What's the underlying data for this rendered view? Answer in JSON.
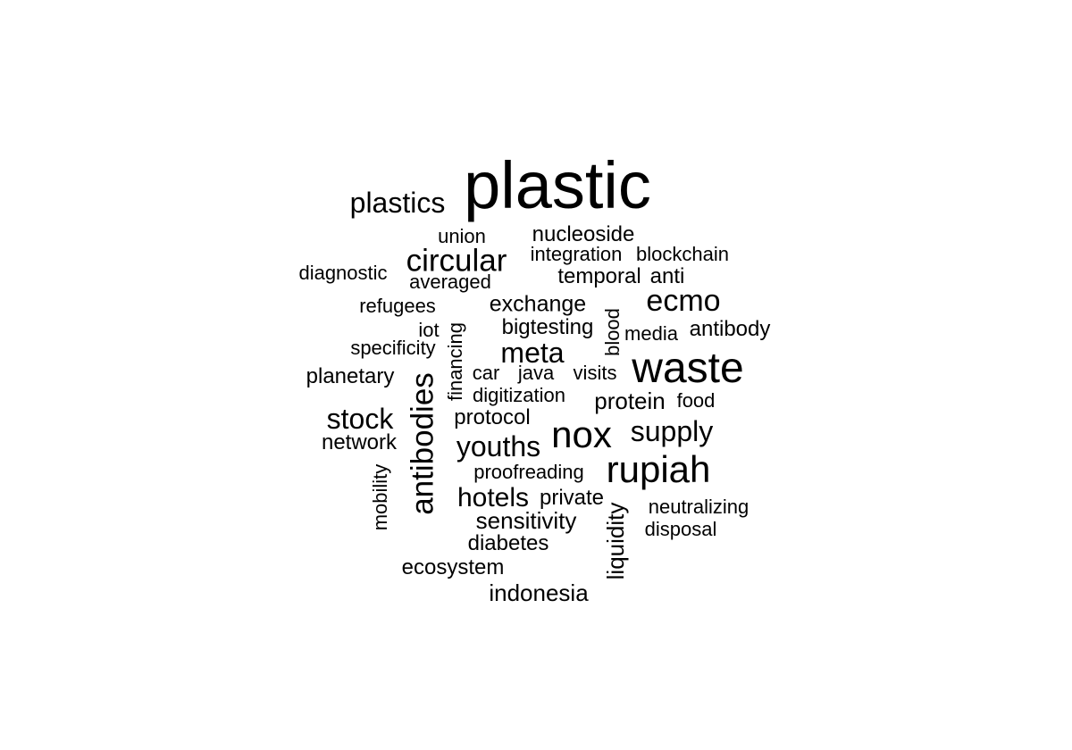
{
  "word_cloud": {
    "words": [
      {
        "text": "plastic"
      },
      {
        "text": "plastics"
      },
      {
        "text": "union"
      },
      {
        "text": "nucleoside"
      },
      {
        "text": "circular"
      },
      {
        "text": "integration"
      },
      {
        "text": "blockchain"
      },
      {
        "text": "diagnostic"
      },
      {
        "text": "temporal"
      },
      {
        "text": "anti"
      },
      {
        "text": "averaged"
      },
      {
        "text": "ecmo"
      },
      {
        "text": "refugees"
      },
      {
        "text": "exchange"
      },
      {
        "text": "bigtesting"
      },
      {
        "text": "antibody"
      },
      {
        "text": "iot"
      },
      {
        "text": "media"
      },
      {
        "text": "financing"
      },
      {
        "text": "blood"
      },
      {
        "text": "specificity"
      },
      {
        "text": "meta"
      },
      {
        "text": "waste"
      },
      {
        "text": "planetary"
      },
      {
        "text": "car"
      },
      {
        "text": "java"
      },
      {
        "text": "visits"
      },
      {
        "text": "antibodies"
      },
      {
        "text": "digitization"
      },
      {
        "text": "protein"
      },
      {
        "text": "food"
      },
      {
        "text": "stock"
      },
      {
        "text": "protocol"
      },
      {
        "text": "nox"
      },
      {
        "text": "supply"
      },
      {
        "text": "network"
      },
      {
        "text": "youths"
      },
      {
        "text": "proofreading"
      },
      {
        "text": "rupiah"
      },
      {
        "text": "mobility"
      },
      {
        "text": "hotels"
      },
      {
        "text": "private"
      },
      {
        "text": "liquidity"
      },
      {
        "text": "neutralizing"
      },
      {
        "text": "sensitivity"
      },
      {
        "text": "disposal"
      },
      {
        "text": "diabetes"
      },
      {
        "text": "ecosystem"
      },
      {
        "text": "indonesia"
      }
    ]
  }
}
